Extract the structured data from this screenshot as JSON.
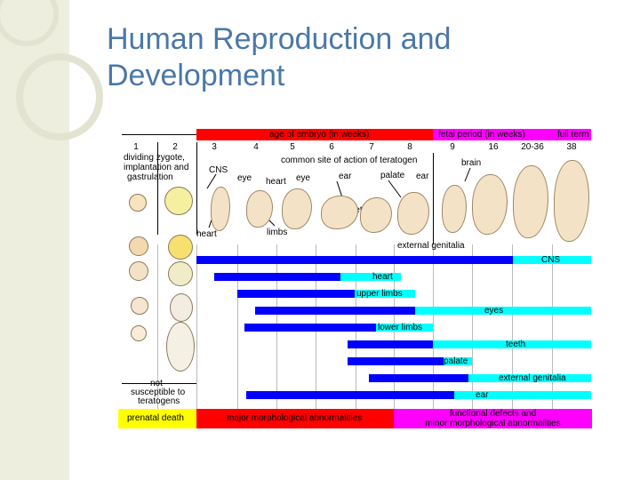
{
  "slide": {
    "title": "Human Reproduction and Development"
  },
  "diagram": {
    "header_embryo": "age of embryo (in weeks)",
    "header_fetal": "fetal period (in weeks)",
    "header_fullterm": "full term",
    "week_numbers": [
      "1",
      "2",
      "3",
      "4",
      "5",
      "6",
      "7",
      "8",
      "9",
      "16",
      "20-36",
      "38"
    ],
    "label_dividing": "dividing zygote,",
    "label_implantation": "implantation and",
    "label_gastrulation": "gastrulation",
    "label_cns": "CNS",
    "label_common_site": "common site of action of teratogen",
    "label_eye1": "eye",
    "label_heart1": "heart",
    "label_eye2": "eye",
    "label_ear1": "ear",
    "label_palate": "palate",
    "label_ear2": "ear",
    "label_brain": "brain",
    "label_teeth": "teeth",
    "label_heart2": "heart",
    "label_limbs": "limbs",
    "label_external_genitalia": "external genitalia",
    "label_not_susceptible_1": "not",
    "label_not_susceptible_2": "susceptible to",
    "label_not_susceptible_3": "teratogens",
    "bars": [
      {
        "label": "CNS"
      },
      {
        "label": "heart"
      },
      {
        "label": "upper limbs"
      },
      {
        "label": "eyes"
      },
      {
        "label": "lower limbs"
      },
      {
        "label": "teeth"
      },
      {
        "label": "palate"
      },
      {
        "label": "external genitalia"
      },
      {
        "label": "ear"
      }
    ],
    "footer_prenatal": "prenatal death",
    "footer_major": "major morphological abnormalities",
    "footer_functional_1": "functional defects and",
    "footer_functional_2": "minor morphological abnormalities",
    "colors": {
      "red": "#ff0000",
      "magenta": "#ff00ff",
      "yellow": "#ffff00",
      "blue": "#0000ff",
      "cyan": "#00ffff"
    }
  }
}
